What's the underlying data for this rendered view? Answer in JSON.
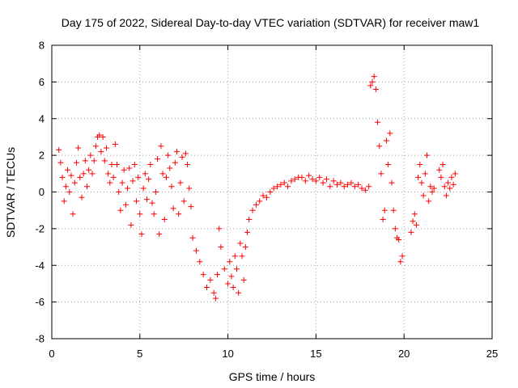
{
  "chart_data": {
    "type": "scatter",
    "title": "Day 175 of 2022, Sidereal Day-to-day VTEC variation (SDTVAR) for receiver maw1",
    "xlabel": "GPS time / hours",
    "ylabel": "SDTVAR / TECUs",
    "xlim": [
      0,
      25
    ],
    "ylim": [
      -8,
      8
    ],
    "xticks": [
      0,
      5,
      10,
      15,
      20,
      25
    ],
    "yticks": [
      -8,
      -6,
      -4,
      -2,
      0,
      2,
      4,
      6,
      8
    ],
    "grid": true,
    "marker": "+",
    "color": "#ff0000",
    "series": [
      {
        "name": "SDTVAR",
        "points": [
          [
            0.4,
            2.3
          ],
          [
            0.5,
            1.6
          ],
          [
            0.6,
            0.8
          ],
          [
            0.7,
            -0.5
          ],
          [
            0.8,
            0.3
          ],
          [
            0.9,
            1.2
          ],
          [
            1.0,
            0.0
          ],
          [
            1.1,
            0.9
          ],
          [
            1.2,
            -1.2
          ],
          [
            1.3,
            0.5
          ],
          [
            1.4,
            1.6
          ],
          [
            1.5,
            2.4
          ],
          [
            1.6,
            0.8
          ],
          [
            1.7,
            -0.3
          ],
          [
            1.8,
            1.0
          ],
          [
            1.9,
            1.7
          ],
          [
            2.0,
            0.3
          ],
          [
            2.1,
            1.2
          ],
          [
            2.2,
            2.0
          ],
          [
            2.3,
            1.0
          ],
          [
            2.4,
            1.7
          ],
          [
            2.5,
            2.5
          ],
          [
            2.6,
            3.0
          ],
          [
            2.7,
            3.1
          ],
          [
            2.8,
            2.2
          ],
          [
            2.9,
            3.0
          ],
          [
            3.0,
            1.7
          ],
          [
            3.1,
            2.4
          ],
          [
            3.2,
            1.0
          ],
          [
            3.3,
            0.5
          ],
          [
            3.4,
            1.5
          ],
          [
            3.5,
            0.8
          ],
          [
            3.6,
            2.6
          ],
          [
            3.7,
            1.5
          ],
          [
            3.8,
            0.0
          ],
          [
            3.9,
            -1.0
          ],
          [
            4.0,
            0.5
          ],
          [
            4.1,
            1.2
          ],
          [
            4.2,
            -0.7
          ],
          [
            4.3,
            0.2
          ],
          [
            4.4,
            1.3
          ],
          [
            4.5,
            -1.8
          ],
          [
            4.6,
            0.6
          ],
          [
            4.7,
            1.5
          ],
          [
            4.8,
            -0.5
          ],
          [
            4.9,
            0.8
          ],
          [
            5.0,
            -1.2
          ],
          [
            5.1,
            -2.3
          ],
          [
            5.2,
            0.2
          ],
          [
            5.3,
            1.0
          ],
          [
            5.4,
            -0.4
          ],
          [
            5.5,
            0.7
          ],
          [
            5.6,
            1.5
          ],
          [
            5.7,
            -0.6
          ],
          [
            5.8,
            -1.2
          ],
          [
            5.9,
            0.0
          ],
          [
            6.0,
            1.8
          ],
          [
            6.1,
            -2.3
          ],
          [
            6.2,
            2.5
          ],
          [
            6.3,
            1.0
          ],
          [
            6.4,
            -1.5
          ],
          [
            6.5,
            0.8
          ],
          [
            6.6,
            2.0
          ],
          [
            6.7,
            1.3
          ],
          [
            6.8,
            0.3
          ],
          [
            6.9,
            -0.9
          ],
          [
            7.0,
            1.6
          ],
          [
            7.1,
            2.2
          ],
          [
            7.2,
            -1.2
          ],
          [
            7.3,
            0.5
          ],
          [
            7.4,
            1.9
          ],
          [
            7.5,
            -0.5
          ],
          [
            7.6,
            2.1
          ],
          [
            7.7,
            1.5
          ],
          [
            7.8,
            0.2
          ],
          [
            7.9,
            -0.8
          ],
          [
            8.0,
            -2.5
          ],
          [
            8.2,
            -3.2
          ],
          [
            8.4,
            -3.8
          ],
          [
            8.6,
            -4.5
          ],
          [
            8.8,
            -5.2
          ],
          [
            9.0,
            -4.8
          ],
          [
            9.2,
            -5.5
          ],
          [
            9.3,
            -5.8
          ],
          [
            9.4,
            -4.5
          ],
          [
            9.5,
            -2.0
          ],
          [
            9.6,
            -3.0
          ],
          [
            9.8,
            -4.2
          ],
          [
            10.0,
            -5.0
          ],
          [
            10.1,
            -3.8
          ],
          [
            10.2,
            -4.6
          ],
          [
            10.3,
            -5.2
          ],
          [
            10.4,
            -3.5
          ],
          [
            10.5,
            -4.2
          ],
          [
            10.6,
            -5.5
          ],
          [
            10.7,
            -2.8
          ],
          [
            10.8,
            -3.5
          ],
          [
            10.9,
            -4.8
          ],
          [
            11.0,
            -3.0
          ],
          [
            11.1,
            -2.2
          ],
          [
            11.2,
            -1.5
          ],
          [
            11.4,
            -1.0
          ],
          [
            11.6,
            -0.7
          ],
          [
            11.8,
            -0.5
          ],
          [
            12.0,
            -0.2
          ],
          [
            12.2,
            -0.3
          ],
          [
            12.4,
            0.0
          ],
          [
            12.6,
            0.2
          ],
          [
            12.8,
            0.3
          ],
          [
            13.0,
            0.4
          ],
          [
            13.2,
            0.5
          ],
          [
            13.4,
            0.3
          ],
          [
            13.6,
            0.6
          ],
          [
            13.8,
            0.7
          ],
          [
            14.0,
            0.8
          ],
          [
            14.2,
            0.8
          ],
          [
            14.4,
            0.6
          ],
          [
            14.6,
            0.9
          ],
          [
            14.8,
            0.7
          ],
          [
            15.0,
            0.6
          ],
          [
            15.2,
            0.8
          ],
          [
            15.4,
            0.5
          ],
          [
            15.6,
            0.7
          ],
          [
            15.8,
            0.3
          ],
          [
            16.0,
            0.6
          ],
          [
            16.2,
            0.4
          ],
          [
            16.4,
            0.5
          ],
          [
            16.6,
            0.3
          ],
          [
            16.8,
            0.4
          ],
          [
            17.0,
            0.5
          ],
          [
            17.2,
            0.3
          ],
          [
            17.4,
            0.4
          ],
          [
            17.6,
            0.2
          ],
          [
            17.8,
            0.1
          ],
          [
            18.0,
            0.3
          ],
          [
            18.1,
            5.8
          ],
          [
            18.2,
            6.0
          ],
          [
            18.3,
            6.3
          ],
          [
            18.4,
            5.6
          ],
          [
            18.5,
            3.8
          ],
          [
            18.6,
            2.5
          ],
          [
            18.7,
            1.0
          ],
          [
            18.8,
            -1.5
          ],
          [
            18.9,
            -1.0
          ],
          [
            19.0,
            2.8
          ],
          [
            19.1,
            1.5
          ],
          [
            19.2,
            3.2
          ],
          [
            19.3,
            0.5
          ],
          [
            19.4,
            -1.0
          ],
          [
            19.5,
            -2.0
          ],
          [
            19.6,
            -2.5
          ],
          [
            19.7,
            -2.6
          ],
          [
            19.8,
            -3.8
          ],
          [
            19.9,
            -3.5
          ],
          [
            20.4,
            -2.2
          ],
          [
            20.5,
            -1.6
          ],
          [
            20.6,
            -1.2
          ],
          [
            20.7,
            -1.8
          ],
          [
            20.8,
            0.8
          ],
          [
            20.9,
            1.5
          ],
          [
            21.0,
            0.5
          ],
          [
            21.1,
            -0.2
          ],
          [
            21.2,
            1.0
          ],
          [
            21.3,
            2.0
          ],
          [
            21.4,
            -0.5
          ],
          [
            21.5,
            0.3
          ],
          [
            21.6,
            0.0
          ],
          [
            21.7,
            0.2
          ],
          [
            22.0,
            1.2
          ],
          [
            22.1,
            0.8
          ],
          [
            22.2,
            1.5
          ],
          [
            22.3,
            0.3
          ],
          [
            22.4,
            -0.2
          ],
          [
            22.5,
            0.5
          ],
          [
            22.6,
            0.2
          ],
          [
            22.7,
            0.8
          ],
          [
            22.8,
            0.4
          ],
          [
            22.9,
            1.0
          ]
        ]
      }
    ]
  }
}
